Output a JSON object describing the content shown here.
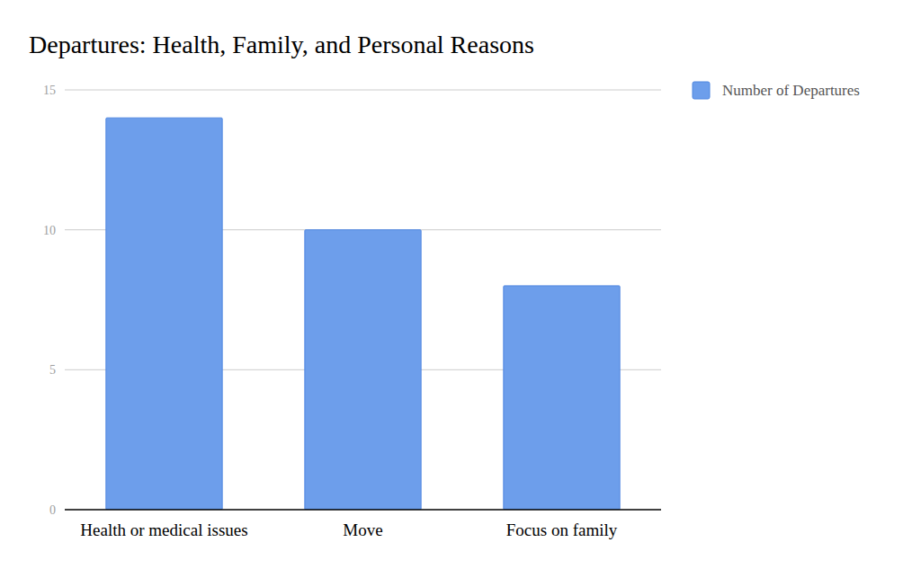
{
  "chart_data": {
    "type": "bar",
    "title": "Departures: Health, Family, and Personal Reasons",
    "categories": [
      "Health or medical issues",
      "Move",
      "Focus on family"
    ],
    "series": [
      {
        "name": "Number of Departures",
        "color": "#6d9eeb",
        "values": [
          14,
          10,
          8
        ]
      }
    ],
    "ylim": [
      0,
      15
    ],
    "yticks": [
      0,
      5,
      10,
      15
    ],
    "grid": true,
    "legend": "top-right"
  }
}
